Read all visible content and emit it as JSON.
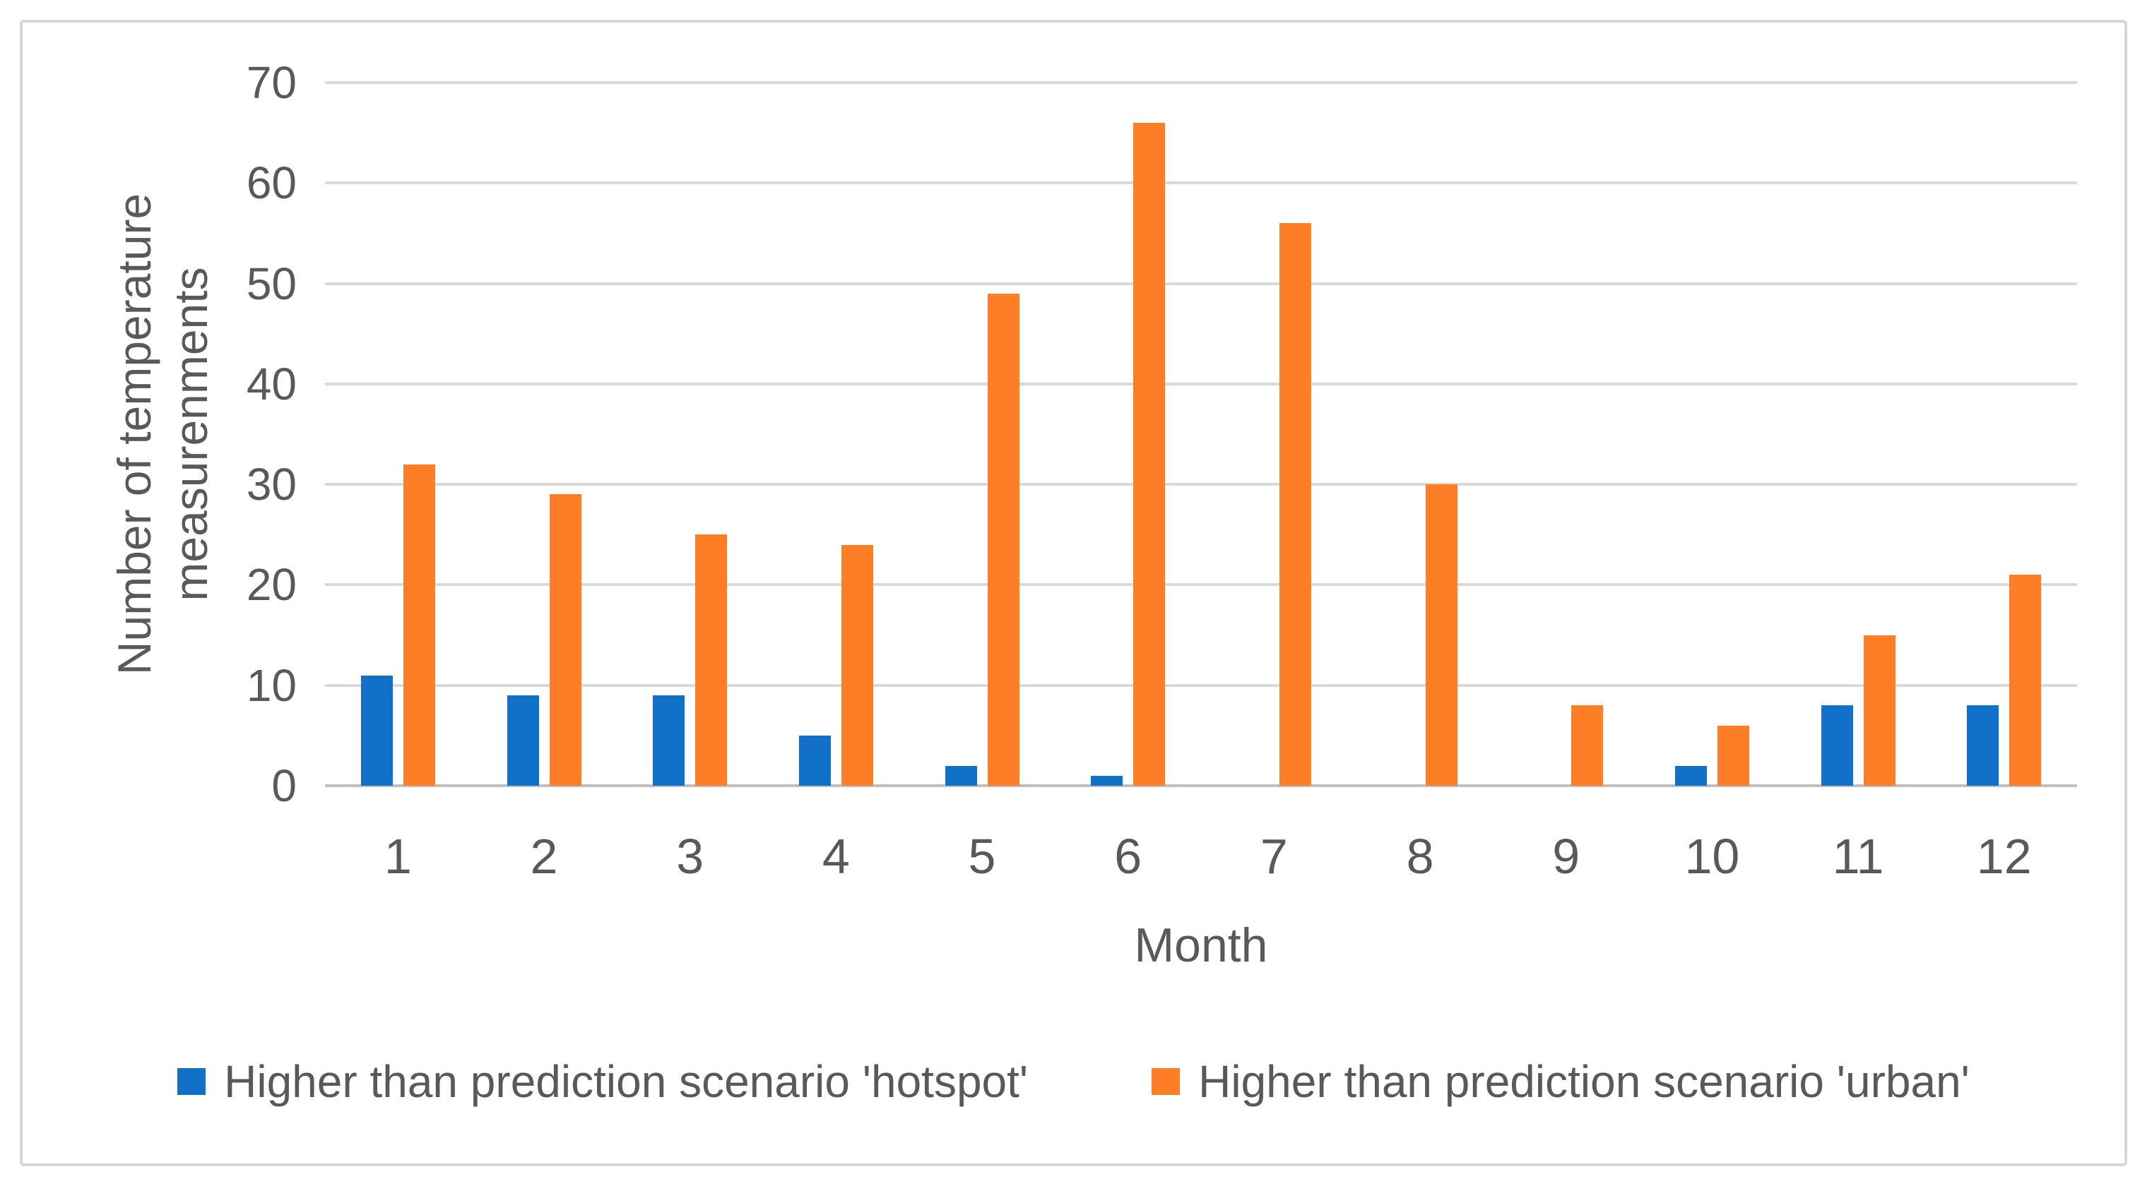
{
  "figure": {
    "y_axis_title_line1": "Number of temperature",
    "y_axis_title_line2": "measurenments",
    "x_axis_title": "Month"
  },
  "chart_data": {
    "type": "bar",
    "title": "",
    "categories": [
      "1",
      "2",
      "3",
      "4",
      "5",
      "6",
      "7",
      "8",
      "9",
      "10",
      "11",
      "12"
    ],
    "series": [
      {
        "name": "Higher than prediction scenario 'hotspot'",
        "color": "#1171C8",
        "values": [
          11,
          9,
          9,
          5,
          2,
          1,
          0,
          0,
          0,
          2,
          8,
          8
        ]
      },
      {
        "name": "Higher than prediction scenario 'urban'",
        "color": "#FD7E27",
        "values": [
          32,
          29,
          25,
          24,
          49,
          66,
          56,
          30,
          8,
          6,
          15,
          21
        ]
      }
    ],
    "xlabel": "Month",
    "ylabel": "Number of temperature measurenments",
    "ylim": [
      0,
      70
    ],
    "ytick_step": 10,
    "grid": true,
    "legend_position": "bottom",
    "colors": {
      "gridline": "#D9D9D9",
      "axis_line": "#BFBFBF",
      "text": "#595959",
      "frame_border": "#D6D6D6"
    }
  }
}
